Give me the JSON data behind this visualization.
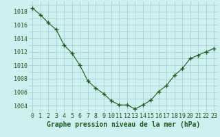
{
  "x": [
    0,
    1,
    2,
    3,
    4,
    5,
    6,
    7,
    8,
    9,
    10,
    11,
    12,
    13,
    14,
    15,
    16,
    17,
    18,
    19,
    20,
    21,
    22,
    23
  ],
  "y": [
    1018.5,
    1017.5,
    1016.3,
    1015.3,
    1013.0,
    1011.8,
    1010.0,
    1007.7,
    1006.6,
    1005.8,
    1004.7,
    1004.1,
    1004.1,
    1003.5,
    1004.1,
    1004.8,
    1006.1,
    1007.0,
    1008.5,
    1009.5,
    1011.0,
    1011.5,
    1012.0,
    1012.5
  ],
  "line_color": "#1a5c1a",
  "marker_color": "#1a5c1a",
  "bg_color": "#cef0f0",
  "grid_color": "#a0cccc",
  "xlabel": "Graphe pression niveau de la mer (hPa)",
  "ylim_min": 1003.0,
  "ylim_max": 1019.5,
  "yticks": [
    1004,
    1006,
    1008,
    1010,
    1012,
    1014,
    1016,
    1018
  ],
  "xticks": [
    0,
    1,
    2,
    3,
    4,
    5,
    6,
    7,
    8,
    9,
    10,
    11,
    12,
    13,
    14,
    15,
    16,
    17,
    18,
    19,
    20,
    21,
    22,
    23
  ],
  "xlabel_fontsize": 7,
  "tick_fontsize": 6,
  "title_color": "#1a5c1a",
  "tick_color": "#1a5c1a"
}
